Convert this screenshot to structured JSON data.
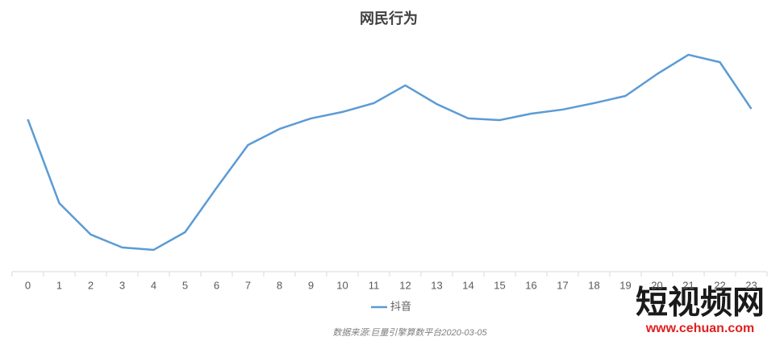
{
  "chart_data": {
    "type": "line",
    "title": "网民行为",
    "categories": [
      "0",
      "1",
      "2",
      "3",
      "4",
      "5",
      "6",
      "7",
      "8",
      "9",
      "10",
      "11",
      "12",
      "13",
      "14",
      "15",
      "16",
      "17",
      "18",
      "19",
      "20",
      "21",
      "22",
      "23"
    ],
    "series": [
      {
        "name": "抖音",
        "color": "#5b9bd5",
        "values": [
          63.6,
          28.6,
          15.5,
          10.1,
          9.1,
          16.5,
          35.0,
          52.9,
          59.6,
          64.0,
          66.7,
          70.4,
          77.8,
          70.0,
          64.0,
          63.3,
          66.0,
          67.7,
          70.4,
          73.4,
          82.5,
          90.6,
          87.5,
          68.0
        ]
      }
    ],
    "ylim": [
      0,
      100
    ],
    "grid": false,
    "legend": "bottom",
    "source": "数据来源:巨量引擎算数平台2020-03-05",
    "watermark": [
      "短视频网",
      "www.cehuan.com"
    ]
  }
}
